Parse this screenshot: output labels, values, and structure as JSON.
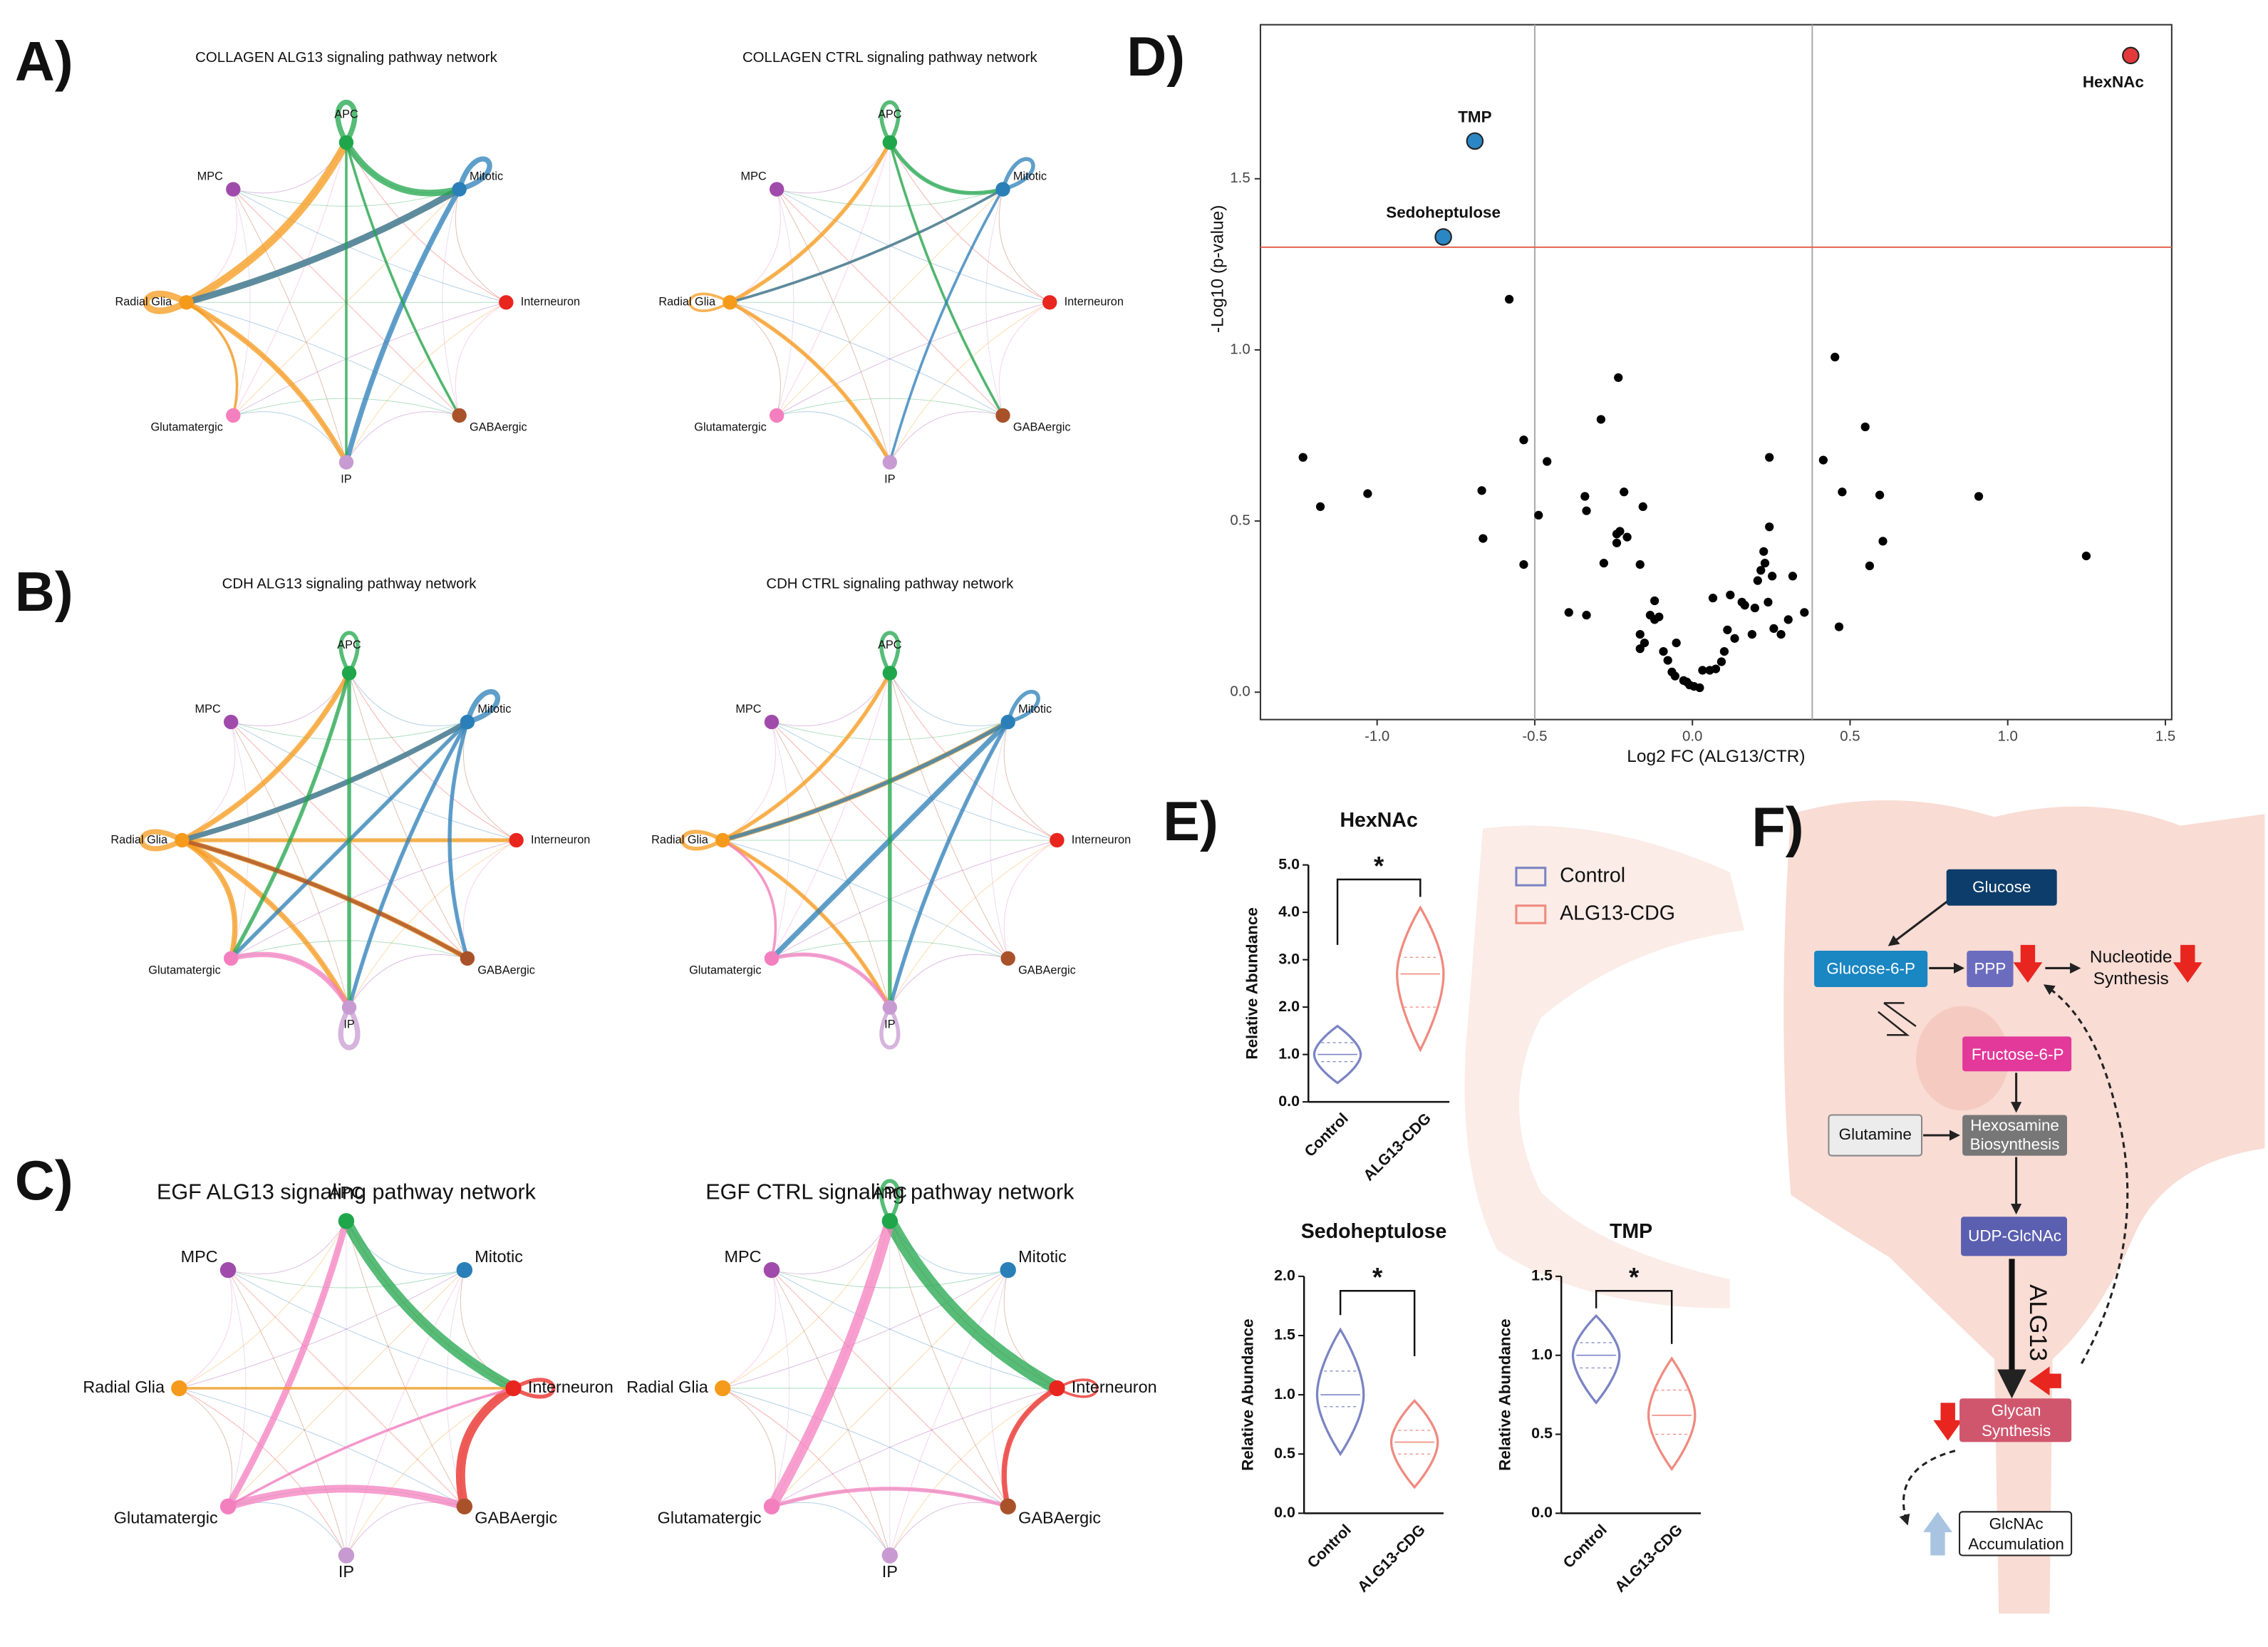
{
  "panel_labels": [
    "A)",
    "B)",
    "C)",
    "D)",
    "E)",
    "F)"
  ],
  "network_nodes": [
    "APC",
    "Mitotic",
    "Interneuron",
    "GABAergic",
    "IP",
    "Glutamatergic",
    "Radial Glia",
    "MPC"
  ],
  "node_colors": [
    "#1fa64a",
    "#2a7fb8",
    "#e8251f",
    "#a9522a",
    "#c79bd2",
    "#f47fbf",
    "#f59a1b",
    "#a04bab"
  ],
  "networks": [
    {
      "title": "COLLAGEN ALG13 signaling pathway network",
      "edges": [
        [
          6,
          0,
          6
        ],
        [
          6,
          1,
          5
        ],
        [
          6,
          6,
          5
        ],
        [
          1,
          6,
          5
        ],
        [
          1,
          4,
          4
        ],
        [
          6,
          4,
          4
        ],
        [
          0,
          1,
          5
        ],
        [
          0,
          0,
          4
        ],
        [
          1,
          1,
          4
        ],
        [
          6,
          5,
          2
        ],
        [
          0,
          4,
          2
        ],
        [
          0,
          3,
          2
        ]
      ]
    },
    {
      "title": "COLLAGEN CTRL signaling pathway network",
      "edges": [
        [
          6,
          0,
          3
        ],
        [
          6,
          1,
          2
        ],
        [
          6,
          4,
          3
        ],
        [
          0,
          1,
          3
        ],
        [
          1,
          6,
          2
        ],
        [
          0,
          0,
          3
        ],
        [
          1,
          1,
          3
        ],
        [
          6,
          6,
          2
        ],
        [
          0,
          3,
          2
        ],
        [
          1,
          4,
          2
        ]
      ]
    },
    {
      "title": "CDH ALG13 signaling pathway network",
      "edges": [
        [
          6,
          0,
          4
        ],
        [
          6,
          1,
          4
        ],
        [
          6,
          2,
          3
        ],
        [
          6,
          3,
          4
        ],
        [
          6,
          4,
          4
        ],
        [
          6,
          5,
          4
        ],
        [
          1,
          6,
          4
        ],
        [
          1,
          5,
          3
        ],
        [
          1,
          4,
          3
        ],
        [
          0,
          4,
          3
        ],
        [
          0,
          5,
          3
        ],
        [
          3,
          6,
          3
        ],
        [
          5,
          4,
          4
        ],
        [
          4,
          4,
          4
        ],
        [
          6,
          6,
          4
        ],
        [
          0,
          0,
          3
        ],
        [
          1,
          1,
          4
        ],
        [
          1,
          3,
          3
        ]
      ]
    },
    {
      "title": "CDH CTRL signaling pathway network",
      "edges": [
        [
          6,
          0,
          3
        ],
        [
          6,
          1,
          4
        ],
        [
          1,
          6,
          3
        ],
        [
          6,
          4,
          3
        ],
        [
          1,
          5,
          4
        ],
        [
          1,
          4,
          3
        ],
        [
          0,
          4,
          3
        ],
        [
          5,
          4,
          3
        ],
        [
          4,
          4,
          3
        ],
        [
          6,
          6,
          3
        ],
        [
          0,
          0,
          3
        ],
        [
          1,
          1,
          3
        ],
        [
          5,
          6,
          2
        ]
      ]
    },
    {
      "title": "EGF ALG13 signaling pathway network",
      "edges": [
        [
          0,
          2,
          8
        ],
        [
          2,
          3,
          7
        ],
        [
          5,
          0,
          5
        ],
        [
          5,
          3,
          6
        ],
        [
          2,
          2,
          3
        ],
        [
          5,
          2,
          2
        ],
        [
          6,
          2,
          2
        ]
      ]
    },
    {
      "title": "EGF CTRL signaling pathway network",
      "edges": [
        [
          0,
          2,
          10
        ],
        [
          2,
          3,
          4
        ],
        [
          5,
          0,
          8
        ],
        [
          5,
          3,
          3
        ],
        [
          0,
          0,
          3
        ],
        [
          2,
          2,
          2
        ]
      ]
    }
  ],
  "chart_data": [
    {
      "type": "scatter",
      "xlabel": "Log2 FC (ALG13/CTR)",
      "ylabel": "-Log10 (p-value)",
      "xlim": [
        -1.37,
        1.52
      ],
      "ylim": [
        -0.08,
        1.95
      ],
      "xticks": [
        {
          "value": -1,
          "label": "-1.0"
        },
        -0.5,
        {
          "value": 0,
          "label": "0.0"
        },
        0.5,
        {
          "value": 1,
          "label": "1.0"
        },
        1.5
      ],
      "yticks": [
        {
          "value": 0,
          "label": "0.0"
        },
        0.5,
        {
          "value": 1,
          "label": "1.0"
        },
        1.5
      ],
      "vlines": [
        -0.5,
        0.38
      ],
      "hlines": [
        1.3
      ],
      "color": "#000000",
      "x": [
        -1.235,
        -1.18,
        -1.03,
        -0.668,
        -0.664,
        -0.581,
        -0.535,
        -0.535,
        -0.488,
        -0.461,
        -0.341,
        -0.336,
        -0.29,
        -0.281,
        -0.235,
        -0.24,
        -0.24,
        -0.217,
        -0.23,
        -0.207,
        -0.166,
        -0.157,
        -0.12,
        -0.134,
        -0.106,
        -0.392,
        -0.336,
        -0.166,
        -0.152,
        -0.166,
        -0.12,
        -0.092,
        -0.078,
        -0.065,
        -0.051,
        -0.055,
        -0.028,
        -0.009,
        0.005,
        0.023,
        -0.018,
        0.032,
        0.055,
        0.074,
        0.092,
        0.101,
        0.065,
        0.111,
        0.134,
        0.12,
        0.157,
        0.166,
        0.189,
        0.198,
        0.207,
        0.217,
        0.226,
        0.23,
        0.244,
        0.253,
        0.24,
        0.258,
        0.281,
        0.304,
        0.318,
        0.355,
        0.244,
        0.415,
        0.452,
        0.465,
        0.475,
        0.548,
        0.562,
        0.594,
        0.604,
        0.908,
        1.249
      ],
      "y": [
        0.686,
        0.542,
        0.58,
        0.589,
        0.449,
        1.148,
        0.737,
        0.373,
        0.517,
        0.674,
        0.572,
        0.53,
        0.797,
        0.377,
        0.919,
        0.462,
        0.436,
        0.585,
        0.47,
        0.453,
        0.373,
        0.542,
        0.267,
        0.225,
        0.22,
        0.233,
        0.225,
        0.169,
        0.144,
        0.127,
        0.212,
        0.119,
        0.093,
        0.059,
        0.144,
        0.047,
        0.034,
        0.021,
        0.017,
        0.013,
        0.03,
        0.064,
        0.064,
        0.068,
        0.089,
        0.119,
        0.275,
        0.182,
        0.157,
        0.284,
        0.263,
        0.254,
        0.169,
        0.246,
        0.326,
        0.356,
        0.411,
        0.377,
        0.483,
        0.339,
        0.263,
        0.186,
        0.169,
        0.212,
        0.339,
        0.233,
        0.686,
        0.678,
        0.979,
        0.191,
        0.585,
        0.775,
        0.369,
        0.576,
        0.441,
        0.572,
        0.398
      ],
      "highlights": [
        {
          "label": "HexNAc",
          "x": 1.39,
          "y": 1.86,
          "color": "#e23a3a"
        },
        {
          "label": "TMP",
          "x": -0.69,
          "y": 1.61,
          "color": "#2a86c4"
        },
        {
          "label": "Sedoheptulose",
          "x": -0.79,
          "y": 1.33,
          "color": "#2a86c4"
        }
      ]
    },
    {
      "type": "violin",
      "title": "HexNAc",
      "ylabel": "Relative Abundance",
      "categories": [
        "Control",
        "ALG13-CDG"
      ],
      "colors": [
        "#7b84c4",
        "#f08a7f"
      ],
      "ylim": [
        0,
        5
      ],
      "yticks": [
        {
          "value": 0,
          "label": "0.0"
        },
        {
          "value": 1,
          "label": "1.0"
        },
        {
          "value": 2,
          "label": "2.0"
        },
        {
          "value": 3,
          "label": "3.0"
        },
        {
          "value": 4,
          "label": "4.0"
        },
        {
          "value": 5,
          "label": "5.0"
        }
      ],
      "violins": [
        {
          "min": 0.4,
          "q1": 0.85,
          "median": 1.0,
          "q3": 1.25,
          "max": 1.6
        },
        {
          "min": 1.1,
          "q1": 2.0,
          "median": 2.7,
          "q3": 3.05,
          "max": 4.1
        }
      ],
      "significance": "*"
    },
    {
      "type": "violin",
      "title": "Sedoheptulose",
      "ylabel": "Relative Abundance",
      "categories": [
        "Control",
        "ALG13-CDG"
      ],
      "colors": [
        "#7b84c4",
        "#f08a7f"
      ],
      "ylim": [
        0,
        2
      ],
      "yticks": [
        {
          "value": 0,
          "label": "0.0"
        },
        0.5,
        {
          "value": 1,
          "label": "1.0"
        },
        1.5,
        {
          "value": 2,
          "label": "2.0"
        }
      ],
      "violins": [
        {
          "min": 0.5,
          "q1": 0.9,
          "median": 1.0,
          "q3": 1.2,
          "max": 1.55
        },
        {
          "min": 0.22,
          "q1": 0.5,
          "median": 0.6,
          "q3": 0.7,
          "max": 0.95
        }
      ],
      "significance": "*"
    },
    {
      "type": "violin",
      "title": "TMP",
      "ylabel": "Relative Abundance",
      "categories": [
        "Control",
        "ALG13-CDG"
      ],
      "colors": [
        "#7b84c4",
        "#f08a7f"
      ],
      "ylim": [
        0,
        1.5
      ],
      "yticks": [
        {
          "value": 0,
          "label": "0.0"
        },
        0.5,
        {
          "value": 1,
          "label": "1.0"
        },
        1.5
      ],
      "violins": [
        {
          "min": 0.7,
          "q1": 0.92,
          "median": 1.0,
          "q3": 1.08,
          "max": 1.25
        },
        {
          "min": 0.28,
          "q1": 0.5,
          "median": 0.62,
          "q3": 0.78,
          "max": 0.98
        }
      ],
      "significance": "*"
    }
  ],
  "legend_e": [
    {
      "name": "Control",
      "color": "#7b84c4"
    },
    {
      "name": "ALG13-CDG",
      "color": "#f08a7f"
    }
  ],
  "pathway": {
    "glucose": "Glucose",
    "g6p": "Glucose-6-P",
    "ppp": "PPP",
    "nucleotide": [
      "Nucleotide",
      "Synthesis"
    ],
    "f6p": "Fructose-6-P",
    "glutamine": "Glutamine",
    "hexosamine": [
      "Hexosamine",
      "Biosynthesis"
    ],
    "udp": "UDP-GlcNAc",
    "alg13": "ALG13",
    "glycan": [
      "Glycan",
      "Synthesis"
    ],
    "glcnac": [
      "GlcNAc",
      "Accumulation"
    ]
  }
}
